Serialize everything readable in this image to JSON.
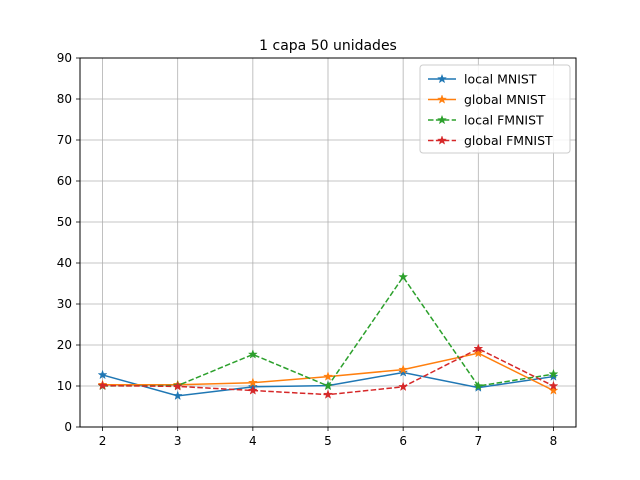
{
  "chart_data": {
    "type": "line",
    "title": "1 capa 50 unidades",
    "xlabel": "",
    "ylabel": "",
    "x": [
      2,
      3,
      4,
      5,
      6,
      7,
      8
    ],
    "xlim": [
      1.7,
      8.3
    ],
    "ylim": [
      0,
      90
    ],
    "xticks": [
      2,
      3,
      4,
      5,
      6,
      7,
      8
    ],
    "yticks": [
      0,
      10,
      20,
      30,
      40,
      50,
      60,
      70,
      80,
      90
    ],
    "grid": true,
    "legend_position": "top-right",
    "series": [
      {
        "name": "local MNIST",
        "color": "#1f77b4",
        "dash": "solid",
        "marker": "star",
        "values": [
          12.7,
          7.6,
          9.8,
          10.1,
          13.3,
          9.6,
          12.3
        ]
      },
      {
        "name": "global MNIST",
        "color": "#ff7f0e",
        "dash": "solid",
        "marker": "star",
        "values": [
          10.3,
          10.3,
          10.8,
          12.3,
          14.0,
          18.0,
          8.9
        ]
      },
      {
        "name": "local FMNIST",
        "color": "#2ca02c",
        "dash": "dashed",
        "marker": "star",
        "values": [
          10.0,
          10.1,
          17.7,
          10.0,
          36.6,
          10.0,
          12.9
        ]
      },
      {
        "name": "global FMNIST",
        "color": "#d62728",
        "dash": "dashed",
        "marker": "star",
        "values": [
          10.1,
          9.9,
          8.9,
          7.9,
          9.8,
          19.1,
          10.0
        ]
      }
    ]
  }
}
